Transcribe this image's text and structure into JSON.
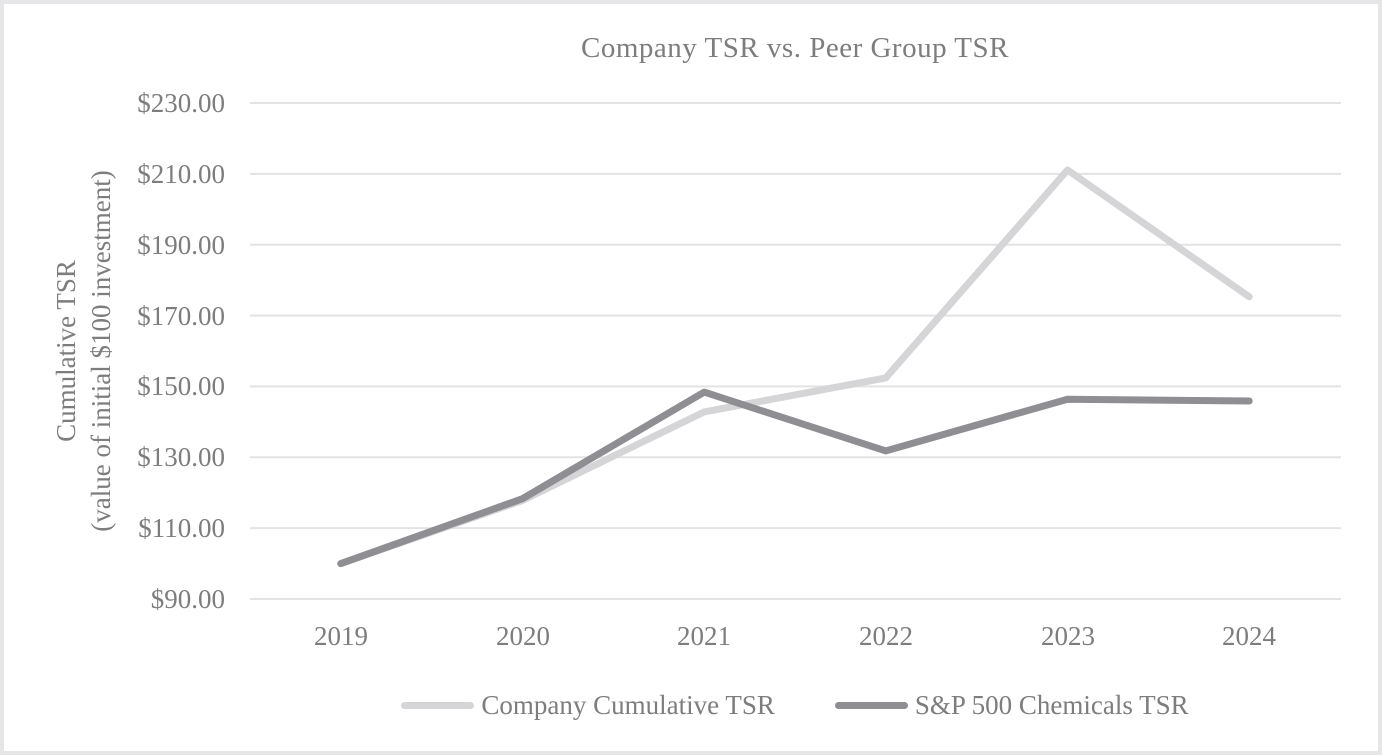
{
  "title": "Company TSR vs. Peer Group TSR",
  "y_axis": {
    "title_line1": "Cumulative TSR",
    "title_line2": "(value of initial $100 investment)",
    "tick_labels": [
      "$230.00",
      "$210.00",
      "$190.00",
      "$170.00",
      "$150.00",
      "$130.00",
      "$110.00",
      "$90.00"
    ]
  },
  "x_axis": {
    "tick_labels": [
      "2019",
      "2020",
      "2021",
      "2022",
      "2023",
      "2024"
    ]
  },
  "legend": [
    {
      "label": "Company Cumulative TSR",
      "color": "#d5d5d8"
    },
    {
      "label": "S&P 500 Chemicals TSR",
      "color": "#8e8e93"
    }
  ],
  "colors": {
    "company_series": "#d5d5d8",
    "sp500_series": "#8e8e93",
    "gridline": "#e3e3e3",
    "text": "#7d7d7f",
    "frame_border": "#e6e6e8",
    "background": "#ffffff"
  },
  "chart_data": {
    "type": "line",
    "title": "Company TSR vs. Peer Group TSR",
    "categories": [
      "2019",
      "2020",
      "2021",
      "2022",
      "2023",
      "2024"
    ],
    "series": [
      {
        "name": "Company Cumulative TSR",
        "color": "#d5d5d8",
        "values": [
          100.0,
          117.8,
          142.8,
          152.4,
          211.1,
          175.3
        ]
      },
      {
        "name": "S&P 500 Chemicals TSR",
        "color": "#8e8e93",
        "values": [
          100.0,
          118.3,
          148.4,
          131.8,
          146.4,
          145.9
        ]
      }
    ],
    "xlabel": "",
    "ylabel": "Cumulative TSR (value of initial $100 investment)",
    "ylim": [
      90,
      230
    ],
    "ytick_step": 20,
    "ytick_format": "$#.00",
    "grid": true,
    "legend_position": "bottom"
  }
}
